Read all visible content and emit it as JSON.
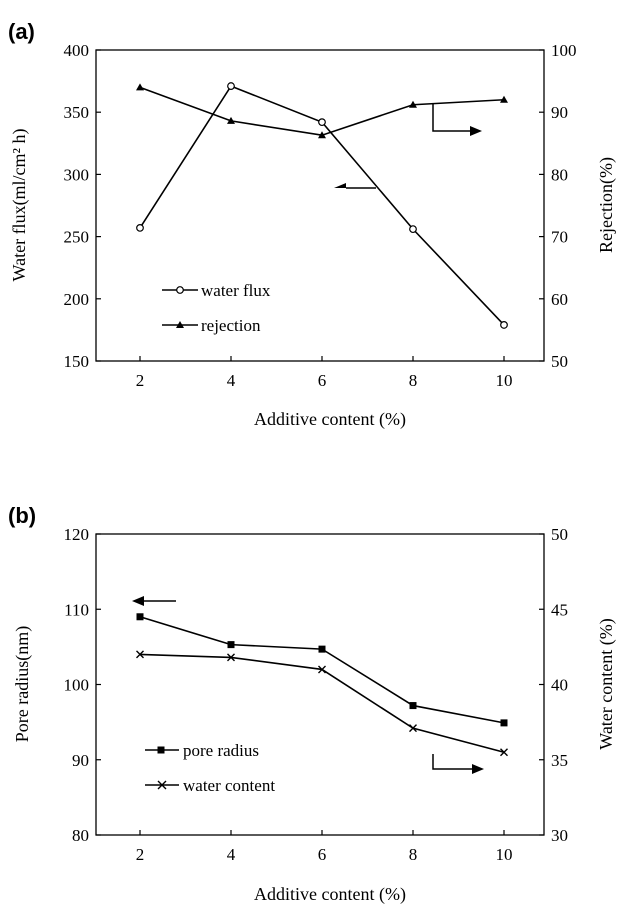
{
  "chart_data": [
    {
      "panel": "(a)",
      "type": "line",
      "xlabel": "Additive content (%)",
      "ylabel_left": "Water flux(ml/cm² h)",
      "ylabel_right": "Rejection(%)",
      "x": [
        2,
        4,
        6,
        8,
        10
      ],
      "x_ticks": [
        "2",
        "4",
        "6",
        "8",
        "10"
      ],
      "ylim_left": [
        150,
        400
      ],
      "y_ticks_left": [
        "150",
        "200",
        "250",
        "300",
        "350",
        "400"
      ],
      "ylim_right": [
        50,
        100
      ],
      "y_ticks_right": [
        "50",
        "60",
        "70",
        "80",
        "90",
        "100"
      ],
      "series": [
        {
          "name": "water flux",
          "axis": "left",
          "marker": "open-circle",
          "values": [
            257,
            371,
            342,
            256,
            179
          ]
        },
        {
          "name": "rejection",
          "axis": "right",
          "marker": "filled-triangle",
          "values": [
            94,
            88.6,
            86.3,
            91.2,
            92
          ]
        }
      ],
      "grid": false,
      "legend": "lower-left"
    },
    {
      "panel": "(b)",
      "type": "line",
      "xlabel": "Additive content (%)",
      "ylabel_left": "Pore radius(nm)",
      "ylabel_right": "Water content (%)",
      "x": [
        2,
        4,
        6,
        8,
        10
      ],
      "x_ticks": [
        "2",
        "4",
        "6",
        "8",
        "10"
      ],
      "ylim_left": [
        80,
        120
      ],
      "y_ticks_left": [
        "80",
        "90",
        "100",
        "110",
        "120"
      ],
      "ylim_right": [
        30,
        50
      ],
      "y_ticks_right": [
        "30",
        "35",
        "40",
        "45",
        "50"
      ],
      "series": [
        {
          "name": "pore radius",
          "axis": "left",
          "marker": "filled-square",
          "values": [
            109,
            105.3,
            104.7,
            97.2,
            94.9
          ]
        },
        {
          "name": "water content",
          "axis": "right",
          "marker": "x-cross",
          "values": [
            42,
            41.8,
            41,
            37.1,
            35.5
          ]
        }
      ],
      "grid": false,
      "legend": "lower-left"
    }
  ]
}
